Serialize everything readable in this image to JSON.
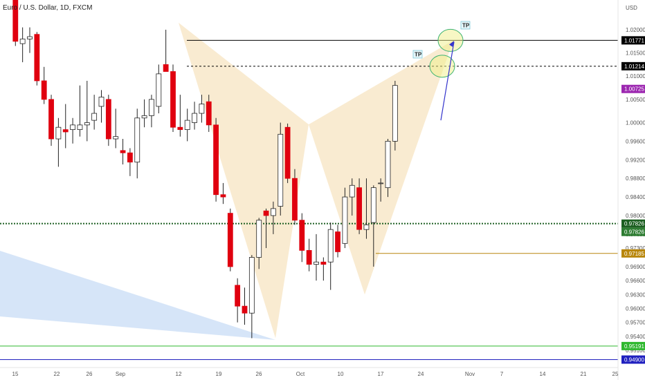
{
  "chart_data": {
    "type": "candlestick",
    "title": "Euro / U.S. Dollar, 1D, FXCM",
    "price_axis_unit": "USD",
    "y_ticks": [
      "1.02000",
      "1.01500",
      "1.01000",
      "1.00500",
      "1.00000",
      "0.99600",
      "0.99200",
      "0.98800",
      "0.98400",
      "0.98000",
      "0.97600",
      "0.97300",
      "0.96900",
      "0.96600",
      "0.96300",
      "0.96000",
      "0.95700",
      "0.95400",
      "0.95100"
    ],
    "x_ticks": [
      "15",
      "22",
      "26",
      "Sep",
      "12",
      "19",
      "26",
      "Oct",
      "10",
      "17",
      "24",
      "Nov",
      "7",
      "14",
      "21",
      "25"
    ],
    "candles": [
      {
        "o": 1.029,
        "h": 1.0295,
        "l": 1.0165,
        "c": 1.0175
      },
      {
        "o": 1.017,
        "h": 1.0205,
        "l": 1.013,
        "c": 1.018
      },
      {
        "o": 1.018,
        "h": 1.0205,
        "l": 1.015,
        "c": 1.0185
      },
      {
        "o": 1.019,
        "h": 1.0195,
        "l": 1.008,
        "c": 1.009
      },
      {
        "o": 1.009,
        "h": 1.012,
        "l": 1.004,
        "c": 1.005
      },
      {
        "o": 1.005,
        "h": 1.006,
        "l": 0.995,
        "c": 0.9965
      },
      {
        "o": 0.9965,
        "h": 1.001,
        "l": 0.9905,
        "c": 0.999
      },
      {
        "o": 0.9985,
        "h": 1.004,
        "l": 0.9945,
        "c": 0.998
      },
      {
        "o": 0.9985,
        "h": 1.001,
        "l": 0.9955,
        "c": 0.9995
      },
      {
        "o": 0.9985,
        "h": 1.008,
        "l": 0.997,
        "c": 0.9995
      },
      {
        "o": 0.9995,
        "h": 1.009,
        "l": 0.996,
        "c": 1.0
      },
      {
        "o": 1.0005,
        "h": 1.006,
        "l": 0.9985,
        "c": 1.002
      },
      {
        "o": 1.0035,
        "h": 1.007,
        "l": 1.0,
        "c": 1.0055
      },
      {
        "o": 1.005,
        "h": 1.006,
        "l": 0.995,
        "c": 0.9965
      },
      {
        "o": 0.9965,
        "h": 1.003,
        "l": 0.9945,
        "c": 0.997
      },
      {
        "o": 0.994,
        "h": 0.9965,
        "l": 0.991,
        "c": 0.9935
      },
      {
        "o": 0.9935,
        "h": 0.9945,
        "l": 0.9885,
        "c": 0.9915
      },
      {
        "o": 0.9915,
        "h": 1.003,
        "l": 0.988,
        "c": 1.001
      },
      {
        "o": 1.001,
        "h": 1.005,
        "l": 0.999,
        "c": 1.0015
      },
      {
        "o": 1.0015,
        "h": 1.006,
        "l": 0.999,
        "c": 1.005
      },
      {
        "o": 1.0035,
        "h": 1.0125,
        "l": 1.002,
        "c": 1.0105
      },
      {
        "o": 1.0125,
        "h": 1.02,
        "l": 1.011,
        "c": 1.011
      },
      {
        "o": 1.011,
        "h": 1.0125,
        "l": 0.998,
        "c": 0.999
      },
      {
        "o": 0.999,
        "h": 1.006,
        "l": 0.997,
        "c": 0.9985
      },
      {
        "o": 0.9985,
        "h": 1.003,
        "l": 0.996,
        "c": 1.0005
      },
      {
        "o": 1.0,
        "h": 1.0045,
        "l": 0.9985,
        "c": 1.002
      },
      {
        "o": 1.002,
        "h": 1.006,
        "l": 1.0,
        "c": 1.004
      },
      {
        "o": 1.0045,
        "h": 1.006,
        "l": 0.998,
        "c": 0.9995
      },
      {
        "o": 0.9995,
        "h": 1.001,
        "l": 0.983,
        "c": 0.9845
      },
      {
        "o": 0.9845,
        "h": 0.987,
        "l": 0.9825,
        "c": 0.984
      },
      {
        "o": 0.9805,
        "h": 0.9815,
        "l": 0.968,
        "c": 0.969
      },
      {
        "o": 0.965,
        "h": 0.9665,
        "l": 0.957,
        "c": 0.9605
      },
      {
        "o": 0.9605,
        "h": 0.9645,
        "l": 0.9565,
        "c": 0.959
      },
      {
        "o": 0.959,
        "h": 0.9715,
        "l": 0.9536,
        "c": 0.971
      },
      {
        "o": 0.971,
        "h": 0.9795,
        "l": 0.9685,
        "c": 0.979
      },
      {
        "o": 0.981,
        "h": 0.9815,
        "l": 0.973,
        "c": 0.98
      },
      {
        "o": 0.98,
        "h": 0.983,
        "l": 0.976,
        "c": 0.9815
      },
      {
        "o": 0.982,
        "h": 1.0,
        "l": 0.98,
        "c": 0.9975
      },
      {
        "o": 0.999,
        "h": 0.9998,
        "l": 0.987,
        "c": 0.988
      },
      {
        "o": 0.988,
        "h": 0.99,
        "l": 0.978,
        "c": 0.979
      },
      {
        "o": 0.979,
        "h": 0.9805,
        "l": 0.97,
        "c": 0.9725
      },
      {
        "o": 0.9725,
        "h": 0.975,
        "l": 0.968,
        "c": 0.9695
      },
      {
        "o": 0.9695,
        "h": 0.976,
        "l": 0.966,
        "c": 0.97
      },
      {
        "o": 0.97,
        "h": 0.971,
        "l": 0.966,
        "c": 0.9695
      },
      {
        "o": 0.97,
        "h": 0.9785,
        "l": 0.964,
        "c": 0.977
      },
      {
        "o": 0.9765,
        "h": 0.978,
        "l": 0.971,
        "c": 0.9722
      },
      {
        "o": 0.974,
        "h": 0.986,
        "l": 0.973,
        "c": 0.984
      },
      {
        "o": 0.984,
        "h": 0.988,
        "l": 0.98,
        "c": 0.9865
      },
      {
        "o": 0.986,
        "h": 0.988,
        "l": 0.976,
        "c": 0.977
      },
      {
        "o": 0.977,
        "h": 0.988,
        "l": 0.975,
        "c": 0.978
      },
      {
        "o": 0.9785,
        "h": 0.9865,
        "l": 0.969,
        "c": 0.986
      },
      {
        "o": 0.987,
        "h": 0.988,
        "l": 0.983,
        "c": 0.987
      },
      {
        "o": 0.986,
        "h": 0.9965,
        "l": 0.984,
        "c": 0.996
      },
      {
        "o": 0.996,
        "h": 1.009,
        "l": 0.994,
        "c": 1.008
      }
    ],
    "level_lines": [
      {
        "price": 1.01771,
        "label": "1.01771",
        "color": "#000000",
        "tag_bg": "#000000",
        "style": "solid"
      },
      {
        "price": 1.01214,
        "label": "1.01214",
        "color": "#000000",
        "tag_bg": "#000000",
        "style": "dashed"
      },
      {
        "price": 1.00725,
        "label": "1.00725",
        "color": "#9c27b0",
        "tag_bg": "#9c27b0",
        "style": "none"
      },
      {
        "price": 0.97826,
        "label": "0.97826",
        "color": "#1b5e20",
        "tag_bg": "#1b5e20",
        "style": "dotted"
      },
      {
        "price": 0.97826,
        "label": "0.97826",
        "color": "#2e7d32",
        "tag_bg": "#2e7d32",
        "style": "none"
      },
      {
        "price": 0.97185,
        "label": "0.97185",
        "color": "#b8860b",
        "tag_bg": "#b8860b",
        "style": "solid"
      },
      {
        "price": 0.95191,
        "label": "0.95191",
        "color": "#2eb82e",
        "tag_bg": "#2eb82e",
        "style": "solid"
      },
      {
        "price": 0.949,
        "label": "0.94900",
        "color": "#1f1fbf",
        "tag_bg": "#1f1fbf",
        "style": "solid"
      }
    ],
    "pattern_label": "TP",
    "colors": {
      "up": "#ffffff",
      "down": "#e0000f",
      "outline": "#222222",
      "pattern_fill": "#f5deb3",
      "wedge_fill": "#c8dcf5"
    }
  }
}
